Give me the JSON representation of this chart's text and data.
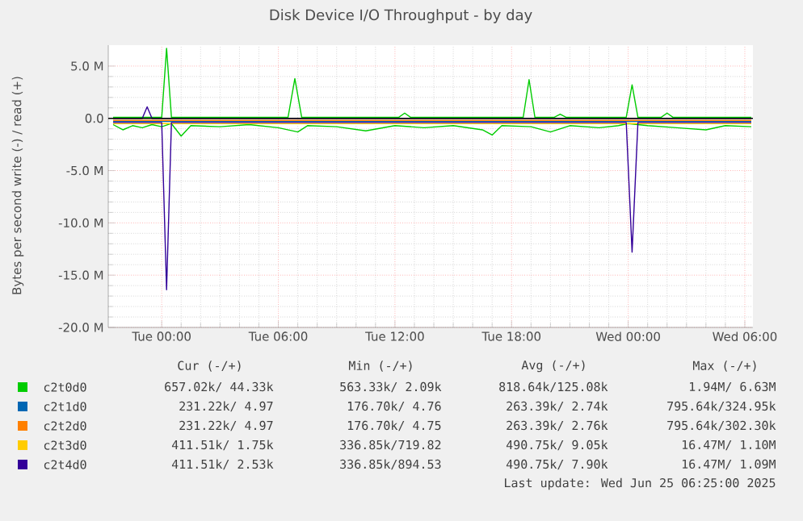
{
  "chart_data": {
    "type": "line",
    "title": "Disk Device I/O Throughput - by day",
    "ylabel": "Bytes per second write (-) / read (+)",
    "xlim": [
      "2025-06-23T21:15",
      "2025-06-25T06:25"
    ],
    "xticks": [
      {
        "value": "2025-06-24T00:00",
        "label": "Tue 00:00"
      },
      {
        "value": "2025-06-24T06:00",
        "label": "Tue 06:00"
      },
      {
        "value": "2025-06-24T12:00",
        "label": "Tue 12:00"
      },
      {
        "value": "2025-06-24T18:00",
        "label": "Tue 18:00"
      },
      {
        "value": "2025-06-25T00:00",
        "label": "Wed 00:00"
      },
      {
        "value": "2025-06-25T06:00",
        "label": "Wed 06:00"
      }
    ],
    "ylim": [
      -20,
      7
    ],
    "yticks": [
      {
        "value": -20,
        "label": "-20.0 M"
      },
      {
        "value": -15,
        "label": "-15.0 M"
      },
      {
        "value": -10,
        "label": "-10.0 M"
      },
      {
        "value": -5,
        "label": "-5.0 M"
      },
      {
        "value": 0,
        "label": "0.0"
      },
      {
        "value": 5,
        "label": "5.0 M"
      }
    ],
    "grid": true,
    "legend": "bottom",
    "marker": "none",
    "line_style": "solid",
    "ref_lines": [
      {
        "axis": "y",
        "value": 0,
        "color": "#000000"
      }
    ],
    "series": [
      {
        "name": "c2t0d0",
        "color": "#00cc00",
        "x": [
          "2025-06-23T21:30",
          "2025-06-23T22:00",
          "2025-06-23T22:30",
          "2025-06-23T23:00",
          "2025-06-23T23:30",
          "2025-06-24T00:00",
          "2025-06-24T00:30",
          "2025-06-24T01:00",
          "2025-06-24T01:30",
          "2025-06-24T03:00",
          "2025-06-24T04:30",
          "2025-06-24T06:00",
          "2025-06-24T07:00",
          "2025-06-24T07:30",
          "2025-06-24T09:00",
          "2025-06-24T10:30",
          "2025-06-24T12:00",
          "2025-06-24T13:30",
          "2025-06-24T15:00",
          "2025-06-24T16:30",
          "2025-06-24T17:00",
          "2025-06-24T17:30",
          "2025-06-24T19:00",
          "2025-06-24T20:00",
          "2025-06-24T21:00",
          "2025-06-24T22:30",
          "2025-06-24T23:30",
          "2025-06-25T00:00",
          "2025-06-25T01:00",
          "2025-06-25T02:30",
          "2025-06-25T04:00",
          "2025-06-25T05:00",
          "2025-06-25T06:20"
        ],
        "values": [
          -0.6,
          -1.1,
          -0.7,
          -0.9,
          -0.6,
          -0.8,
          -0.5,
          -1.7,
          -0.7,
          -0.8,
          -0.6,
          -0.9,
          -1.3,
          -0.7,
          -0.8,
          -1.2,
          -0.7,
          -0.9,
          -0.7,
          -1.1,
          -1.6,
          -0.7,
          -0.8,
          -1.3,
          -0.7,
          -0.9,
          -0.7,
          -0.5,
          -0.7,
          -0.9,
          -1.1,
          -0.7,
          -0.8
        ]
      },
      {
        "name": "c2t1d0",
        "color": "#0066b3",
        "x": [
          "2025-06-23T21:30",
          "2025-06-25T06:20"
        ],
        "values": [
          -0.3,
          -0.3
        ]
      },
      {
        "name": "c2t2d0",
        "color": "#ff8000",
        "x": [
          "2025-06-23T21:30",
          "2025-06-25T06:20"
        ],
        "values": [
          -0.2,
          -0.2
        ]
      },
      {
        "name": "c2t3d0",
        "color": "#ffcc00",
        "x": [
          "2025-06-23T21:30",
          "2025-06-25T06:20"
        ],
        "values": [
          -0.5,
          -0.5
        ]
      },
      {
        "name": "c2t4d0",
        "color": "#330099",
        "x": [
          "2025-06-23T21:30",
          "2025-06-24T00:00",
          "2025-06-24T00:15",
          "2025-06-24T00:30",
          "2025-06-24T23:54",
          "2025-06-25T00:12",
          "2025-06-25T00:30",
          "2025-06-25T06:20"
        ],
        "values": [
          -0.4,
          -0.4,
          -16.4,
          -0.4,
          -0.4,
          -12.8,
          -0.4,
          -0.4
        ]
      },
      {
        "color": "#00cc00",
        "x": [
          "2025-06-23T21:30",
          "2025-06-24T00:00",
          "2025-06-24T00:15",
          "2025-06-24T00:30",
          "2025-06-24T06:30",
          "2025-06-24T06:51",
          "2025-06-24T07:12",
          "2025-06-24T12:12",
          "2025-06-24T12:30",
          "2025-06-24T12:48",
          "2025-06-24T18:36",
          "2025-06-24T18:54",
          "2025-06-24T19:12",
          "2025-06-24T20:12",
          "2025-06-24T20:30",
          "2025-06-24T20:48",
          "2025-06-24T23:54",
          "2025-06-25T00:12",
          "2025-06-25T00:30",
          "2025-06-25T01:42",
          "2025-06-25T02:00",
          "2025-06-25T02:18",
          "2025-06-25T06:20"
        ],
        "values": [
          0.1,
          0.1,
          6.7,
          0.1,
          0.1,
          3.8,
          0.1,
          0.1,
          0.5,
          0.1,
          0.1,
          3.7,
          0.1,
          0.1,
          0.4,
          0.1,
          0.1,
          3.2,
          0.1,
          0.1,
          0.5,
          0.1,
          0.1
        ]
      },
      {
        "color": "#330099",
        "x": [
          "2025-06-23T21:30",
          "2025-06-23T23:00",
          "2025-06-23T23:15",
          "2025-06-23T23:30",
          "2025-06-25T06:20"
        ],
        "values": [
          0,
          0,
          1.1,
          0,
          0
        ]
      }
    ],
    "annotations": [
      "Cur (-/+)",
      "Min (-/+)",
      "Avg (-/+)",
      "Max (-/+)",
      "657.02k/ 44.33k",
      "563.33k/ 2.09k",
      "818.64k/125.08k",
      "1.94M/ 6.63M",
      "231.22k/ 4.97",
      "176.70k/ 4.76",
      "263.39k/ 2.74k",
      "795.64k/324.95k",
      "231.22k/ 4.97",
      "176.70k/ 4.75",
      "263.39k/ 2.76k",
      "795.64k/302.30k",
      "411.51k/ 1.75k",
      "336.85k/719.82",
      "490.75k/ 9.05k",
      "16.47M/ 1.10M",
      "411.51k/ 2.53k",
      "336.85k/894.53",
      "490.75k/ 7.90k",
      "16.47M/ 1.09M",
      "Last update: Wed Jun 25 06:25:00 2025"
    ]
  }
}
